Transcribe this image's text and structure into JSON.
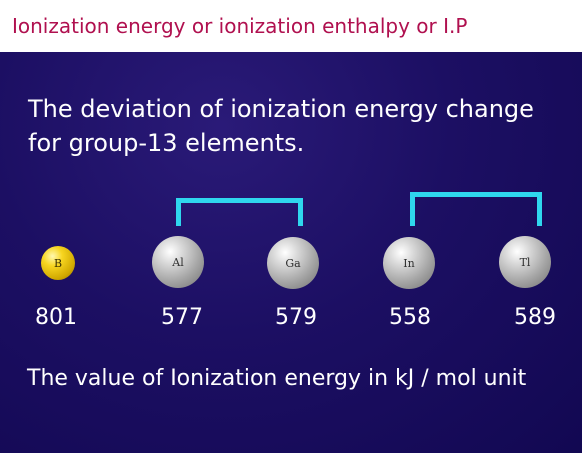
{
  "header": {
    "title": "Ionization energy or ionization enthalpy or I.P"
  },
  "main": {
    "heading": "The deviation of ionization energy change for group-13 elements.",
    "footer": "The value of Ionization energy in kJ / mol unit"
  },
  "elements": [
    {
      "symbol": "B",
      "ionization_energy": "801"
    },
    {
      "symbol": "Al",
      "ionization_energy": "577"
    },
    {
      "symbol": "Ga",
      "ionization_energy": "579"
    },
    {
      "symbol": "In",
      "ionization_energy": "558"
    },
    {
      "symbol": "Tl",
      "ionization_energy": "589"
    }
  ],
  "colors": {
    "background": "#1c0f63",
    "title_text": "#b0104f",
    "bracket": "#2fd7ee",
    "boron_sphere": "#f7d520",
    "metal_sphere": "#a5a5a5"
  }
}
